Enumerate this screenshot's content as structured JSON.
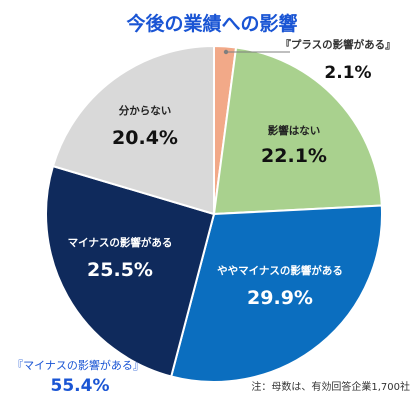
{
  "chart_data": {
    "type": "pie",
    "title": "今後の業績への影響",
    "slices": [
      {
        "label": "『プラスの影響がある』",
        "value": 2.1,
        "display": "2.1%",
        "color": "#f2a988"
      },
      {
        "label": "影響はない",
        "value": 22.1,
        "display": "22.1%",
        "color": "#a9d18e"
      },
      {
        "label": "ややマイナスの影響がある",
        "value": 29.9,
        "display": "29.9%",
        "color": "#0b6ebf"
      },
      {
        "label": "マイナスの影響がある",
        "value": 25.5,
        "display": "25.5%",
        "color": "#0f2a5c"
      },
      {
        "label": "分からない",
        "value": 20.4,
        "display": "20.4%",
        "color": "#d9d9d9"
      }
    ],
    "group_annotation": {
      "label": "『マイナスの影響がある』",
      "value": "55.4%"
    },
    "note": "注：母数は、有効回答企業1,700社",
    "title_color": "#1a55d4"
  }
}
